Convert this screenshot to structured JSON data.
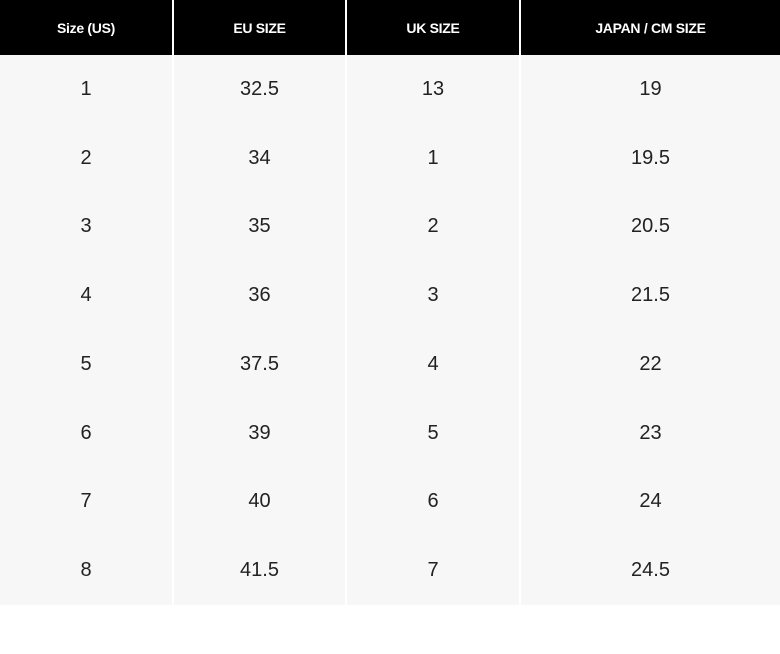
{
  "table": {
    "headers": [
      "Size (US)",
      "EU SIZE",
      "UK SIZE",
      "JAPAN / CM SIZE"
    ],
    "rows": [
      [
        "1",
        "32.5",
        "13",
        "19"
      ],
      [
        "2",
        "34",
        "1",
        "19.5"
      ],
      [
        "3",
        "35",
        "2",
        "20.5"
      ],
      [
        "4",
        "36",
        "3",
        "21.5"
      ],
      [
        "5",
        "37.5",
        "4",
        "22"
      ],
      [
        "6",
        "39",
        "5",
        "23"
      ],
      [
        "7",
        "40",
        "6",
        "24"
      ],
      [
        "8",
        "41.5",
        "7",
        "24.5"
      ]
    ]
  }
}
